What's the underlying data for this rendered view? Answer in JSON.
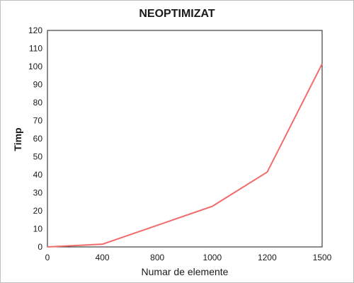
{
  "chart_data": {
    "type": "line",
    "title": "NEOPTIMIZAT",
    "xlabel": "Numar de elemente",
    "ylabel": "Timp",
    "categories": [
      "0",
      "400",
      "800",
      "1000",
      "1200",
      "1500"
    ],
    "series": [
      {
        "values": [
          0,
          1.5,
          12,
          22.5,
          41.5,
          101.5
        ],
        "color": "#f26b6b"
      }
    ],
    "yticks": [
      0,
      10,
      20,
      30,
      40,
      50,
      60,
      70,
      80,
      90,
      100,
      110,
      120
    ],
    "ylim": [
      0,
      120
    ],
    "grid": false,
    "legend": "none"
  }
}
